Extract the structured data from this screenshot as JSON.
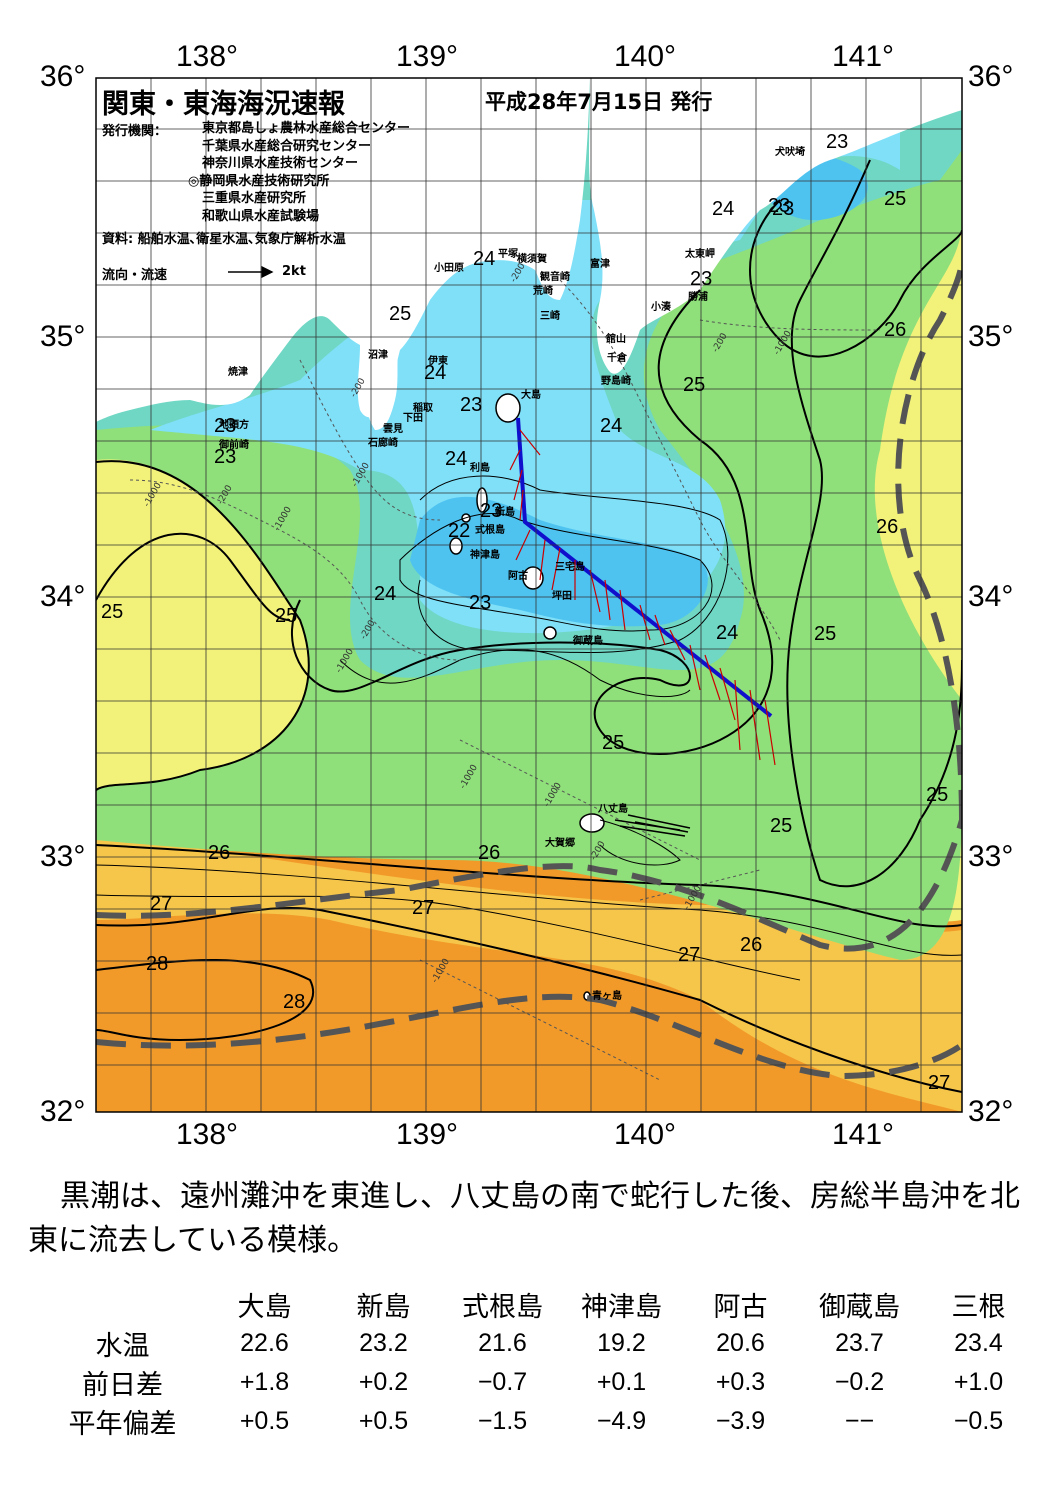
{
  "map": {
    "title": "関東・東海海況速報",
    "date": "平成28年7月15日 発行",
    "publisher_label": "発行機関：",
    "publishers": [
      "東京都島しょ農林水産総合センター",
      "千葉県水産総合研究センター",
      "神奈川県水産技術センター",
      "◎静岡県水産技術研究所",
      "三重県水産研究所",
      "和歌山県水産試験場"
    ],
    "sources": "資料: 船舶水温､衛星水温､気象庁解析水温",
    "legend_label": "流向・流速",
    "legend_scale": "2kt",
    "lon_labels": [
      "138°",
      "139°",
      "140°",
      "141°"
    ],
    "lat_labels": [
      "36°",
      "35°",
      "34°",
      "33°",
      "32°"
    ],
    "colors": {
      "t22": "#4fc3f0",
      "t23": "#7fe0f8",
      "t24": "#6ed6c8",
      "t25": "#8fe07a",
      "t26": "#f2f27a",
      "t27": "#f6c64a",
      "t28": "#f19a2a",
      "land": "#ffffff",
      "kuroshio_axis": "#555555",
      "track": "#1010cc",
      "current_vectors": "#cc0000"
    },
    "place_labels": [
      "犬吠埼",
      "太東岬",
      "勝浦",
      "小湊",
      "富津",
      "観音崎",
      "荒崎",
      "三崎",
      "館山",
      "千倉",
      "野島崎",
      "平塚",
      "横須賀",
      "小田原",
      "沼津",
      "伊東",
      "稲取",
      "下田",
      "雲見",
      "石廊崎",
      "焼津",
      "地頭方",
      "御前崎",
      "大島",
      "利島",
      "新島",
      "式根島",
      "神津島",
      "三宅島",
      "阿古",
      "坪田",
      "御蔵島",
      "八丈島",
      "大賀郷",
      "青ヶ島"
    ],
    "isotherm_labels": [
      "23",
      "23",
      "24",
      "25",
      "23",
      "25",
      "24",
      "24",
      "23",
      "23",
      "23",
      "24",
      "24",
      "23",
      "22",
      "23",
      "24",
      "23",
      "25",
      "24",
      "25",
      "25",
      "25",
      "26",
      "25",
      "26",
      "26",
      "27",
      "28",
      "28",
      "27",
      "27",
      "26",
      "27",
      "25",
      "25",
      "26"
    ],
    "depth_labels": [
      "-200",
      "-200",
      "-1000",
      "-200",
      "-1000",
      "-200",
      "-1000",
      "-1000",
      "-1000",
      "-200",
      "-1000",
      "-1000",
      "-200",
      "-1000",
      "-1000"
    ]
  },
  "summary": "黒潮は、遠州灘沖を東進し、八丈島の南で蛇行した後、房総半島沖を北東に流去している模様。",
  "stats": {
    "stations": [
      "大島",
      "新島",
      "式根島",
      "神津島",
      "阿古",
      "御蔵島",
      "三根"
    ],
    "rows": [
      {
        "label": "水温",
        "values": [
          "22.6",
          "23.2",
          "21.6",
          "19.2",
          "20.6",
          "23.7",
          "23.4"
        ]
      },
      {
        "label": "前日差",
        "values": [
          "+1.8",
          "+0.2",
          "−0.7",
          "+0.1",
          "+0.3",
          "−0.2",
          "+1.0"
        ]
      },
      {
        "label": "平年偏差",
        "values": [
          "+0.5",
          "+0.5",
          "−1.5",
          "−4.9",
          "−3.9",
          "−−",
          "−0.5"
        ]
      }
    ]
  }
}
